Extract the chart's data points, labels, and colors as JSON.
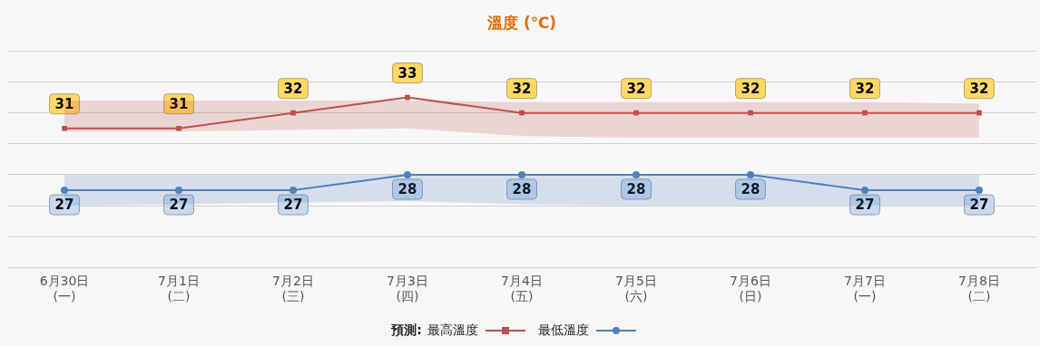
{
  "chart_data": {
    "type": "line",
    "title": "溫度 (℃)",
    "legend_title": "預測:",
    "categories": [
      "6月30日\n(一)",
      "7月1日\n(二)",
      "7月2日\n(三)",
      "7月3日\n(四)",
      "7月4日\n(五)",
      "7月5日\n(六)",
      "7月6日\n(日)",
      "7月7日\n(一)",
      "7月8日\n(二)"
    ],
    "series": [
      {
        "name": "最高溫度",
        "color": "#c0504d",
        "marker": "square",
        "values": [
          31,
          31,
          32,
          33,
          32,
          32,
          32,
          32,
          32
        ],
        "upper": [
          32.8,
          32.8,
          32.8,
          32.8,
          32.7,
          32.7,
          32.7,
          32.7,
          32.6
        ],
        "lower": [
          30.8,
          30.8,
          30.9,
          31,
          30.5,
          30.4,
          30.4,
          30.4,
          30.4
        ]
      },
      {
        "name": "最低溫度",
        "color": "#4f81bd",
        "marker": "circle",
        "values": [
          27,
          27,
          27,
          28,
          28,
          28,
          28,
          27,
          27
        ],
        "upper": [
          28,
          28,
          28,
          28,
          28,
          28,
          28,
          28,
          28
        ],
        "lower": [
          26,
          26.1,
          26.2,
          26.3,
          26.1,
          26,
          26,
          26,
          26
        ]
      }
    ],
    "ylim": [
      22,
      36
    ],
    "yticks": [
      {
        "value": 22,
        "label": null
      },
      {
        "value": 24,
        "label": null
      },
      {
        "value": 26,
        "label": null
      },
      {
        "value": 28,
        "label": null
      },
      {
        "value": 30,
        "label": null
      },
      {
        "value": 32,
        "label": null
      },
      {
        "value": 34,
        "label": null
      },
      {
        "value": 36,
        "label": null
      }
    ],
    "tick_labels": "x",
    "grid": "y",
    "legend": "bottom",
    "data_labels": true,
    "line_style": "solid"
  }
}
